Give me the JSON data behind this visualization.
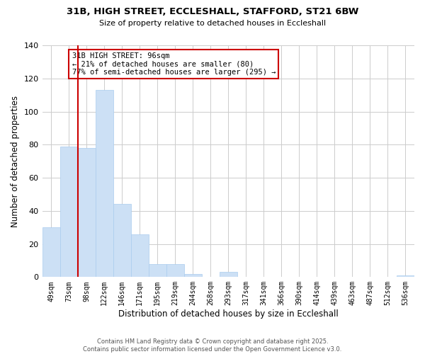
{
  "title": "31B, HIGH STREET, ECCLESHALL, STAFFORD, ST21 6BW",
  "subtitle": "Size of property relative to detached houses in Eccleshall",
  "xlabel": "Distribution of detached houses by size in Eccleshall",
  "ylabel": "Number of detached properties",
  "footer_lines": [
    "Contains HM Land Registry data © Crown copyright and database right 2025.",
    "Contains public sector information licensed under the Open Government Licence v3.0."
  ],
  "bin_labels": [
    "49sqm",
    "73sqm",
    "98sqm",
    "122sqm",
    "146sqm",
    "171sqm",
    "195sqm",
    "219sqm",
    "244sqm",
    "268sqm",
    "293sqm",
    "317sqm",
    "341sqm",
    "366sqm",
    "390sqm",
    "414sqm",
    "439sqm",
    "463sqm",
    "487sqm",
    "512sqm",
    "536sqm"
  ],
  "bar_values": [
    30,
    79,
    78,
    113,
    44,
    26,
    8,
    8,
    2,
    0,
    3,
    0,
    0,
    0,
    0,
    0,
    0,
    0,
    0,
    0,
    1
  ],
  "bar_color": "#cce0f5",
  "bar_edge_color": "#aaccee",
  "grid_color": "#cccccc",
  "annotation_box_line1": "31B HIGH STREET: 96sqm",
  "annotation_box_line2": "← 21% of detached houses are smaller (80)",
  "annotation_box_line3": "77% of semi-detached houses are larger (295) →",
  "annotation_box_color": "#ffffff",
  "annotation_box_edge_color": "#cc0000",
  "vline_x_index": 2,
  "vline_color": "#cc0000",
  "ylim": [
    0,
    140
  ],
  "yticks": [
    0,
    20,
    40,
    60,
    80,
    100,
    120,
    140
  ],
  "background_color": "#ffffff",
  "figwidth": 6.0,
  "figheight": 5.0,
  "dpi": 100
}
